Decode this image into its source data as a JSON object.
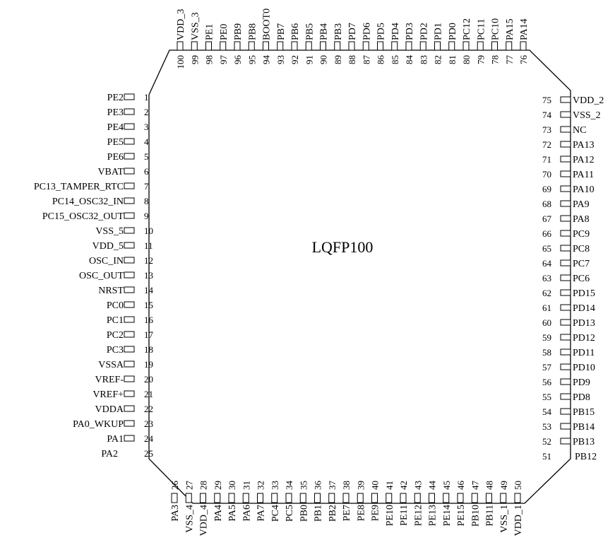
{
  "package_label": "LQFP100",
  "left_pins": [
    {
      "num": "1",
      "name": "PE2"
    },
    {
      "num": "2",
      "name": "PE3"
    },
    {
      "num": "3",
      "name": "PE4"
    },
    {
      "num": "4",
      "name": "PE5"
    },
    {
      "num": "5",
      "name": "PE6"
    },
    {
      "num": "6",
      "name": "VBAT"
    },
    {
      "num": "7",
      "name": "PC13_TAMPER_RTC"
    },
    {
      "num": "8",
      "name": "PC14_OSC32_IN"
    },
    {
      "num": "9",
      "name": "PC15_OSC32_OUT"
    },
    {
      "num": "10",
      "name": "VSS_5"
    },
    {
      "num": "11",
      "name": "VDD_5"
    },
    {
      "num": "12",
      "name": "OSC_IN"
    },
    {
      "num": "13",
      "name": "OSC_OUT"
    },
    {
      "num": "14",
      "name": "NRST"
    },
    {
      "num": "15",
      "name": "PC0"
    },
    {
      "num": "16",
      "name": "PC1"
    },
    {
      "num": "17",
      "name": "PC2"
    },
    {
      "num": "18",
      "name": "PC3"
    },
    {
      "num": "19",
      "name": "VSSA"
    },
    {
      "num": "20",
      "name": "VREF-"
    },
    {
      "num": "21",
      "name": "VREF+"
    },
    {
      "num": "22",
      "name": "VDDA"
    },
    {
      "num": "23",
      "name": "PA0_WKUP"
    },
    {
      "num": "24",
      "name": "PA1"
    },
    {
      "num": "25",
      "name": "PA2"
    }
  ],
  "bottom_pins": [
    {
      "num": "26",
      "name": "PA3"
    },
    {
      "num": "27",
      "name": "VSS_4"
    },
    {
      "num": "28",
      "name": "VDD_4"
    },
    {
      "num": "29",
      "name": "PA4"
    },
    {
      "num": "30",
      "name": "PA5"
    },
    {
      "num": "31",
      "name": "PA6"
    },
    {
      "num": "32",
      "name": "PA7"
    },
    {
      "num": "33",
      "name": "PC4"
    },
    {
      "num": "34",
      "name": "PC5"
    },
    {
      "num": "35",
      "name": "PB0"
    },
    {
      "num": "36",
      "name": "PB1"
    },
    {
      "num": "37",
      "name": "PB2"
    },
    {
      "num": "38",
      "name": "PE7"
    },
    {
      "num": "39",
      "name": "PE8"
    },
    {
      "num": "40",
      "name": "PE9"
    },
    {
      "num": "41",
      "name": "PE10"
    },
    {
      "num": "42",
      "name": "PE11"
    },
    {
      "num": "43",
      "name": "PE12"
    },
    {
      "num": "44",
      "name": "PE13"
    },
    {
      "num": "45",
      "name": "PE14"
    },
    {
      "num": "46",
      "name": "PE15"
    },
    {
      "num": "47",
      "name": "PB10"
    },
    {
      "num": "48",
      "name": "PB11"
    },
    {
      "num": "49",
      "name": "VSS_1"
    },
    {
      "num": "50",
      "name": "VDD_1"
    }
  ],
  "right_pins": [
    {
      "num": "51",
      "name": "PB12"
    },
    {
      "num": "52",
      "name": "PB13"
    },
    {
      "num": "53",
      "name": "PB14"
    },
    {
      "num": "54",
      "name": "PB15"
    },
    {
      "num": "55",
      "name": "PD8"
    },
    {
      "num": "56",
      "name": "PD9"
    },
    {
      "num": "57",
      "name": "PD10"
    },
    {
      "num": "58",
      "name": "PD11"
    },
    {
      "num": "59",
      "name": "PD12"
    },
    {
      "num": "60",
      "name": "PD13"
    },
    {
      "num": "61",
      "name": "PD14"
    },
    {
      "num": "62",
      "name": "PD15"
    },
    {
      "num": "63",
      "name": "PC6"
    },
    {
      "num": "64",
      "name": "PC7"
    },
    {
      "num": "65",
      "name": "PC8"
    },
    {
      "num": "66",
      "name": "PC9"
    },
    {
      "num": "67",
      "name": "PA8"
    },
    {
      "num": "68",
      "name": "PA9"
    },
    {
      "num": "69",
      "name": "PA10"
    },
    {
      "num": "70",
      "name": "PA11"
    },
    {
      "num": "71",
      "name": "PA12"
    },
    {
      "num": "72",
      "name": "PA13"
    },
    {
      "num": "73",
      "name": "NC"
    },
    {
      "num": "74",
      "name": "VSS_2"
    },
    {
      "num": "75",
      "name": "VDD_2"
    }
  ],
  "top_pins": [
    {
      "num": "76",
      "name": "PA14"
    },
    {
      "num": "77",
      "name": "PA15"
    },
    {
      "num": "78",
      "name": "PC10"
    },
    {
      "num": "79",
      "name": "PC11"
    },
    {
      "num": "80",
      "name": "PC12"
    },
    {
      "num": "81",
      "name": "PD0"
    },
    {
      "num": "82",
      "name": "PD1"
    },
    {
      "num": "83",
      "name": "PD2"
    },
    {
      "num": "84",
      "name": "PD3"
    },
    {
      "num": "85",
      "name": "PD4"
    },
    {
      "num": "86",
      "name": "PD5"
    },
    {
      "num": "87",
      "name": "PD6"
    },
    {
      "num": "88",
      "name": "PD7"
    },
    {
      "num": "89",
      "name": "PB3"
    },
    {
      "num": "90",
      "name": "PB4"
    },
    {
      "num": "91",
      "name": "PB5"
    },
    {
      "num": "92",
      "name": "PB6"
    },
    {
      "num": "93",
      "name": "PB7"
    },
    {
      "num": "94",
      "name": "BOOT0"
    },
    {
      "num": "95",
      "name": "PB8"
    },
    {
      "num": "96",
      "name": "PB9"
    },
    {
      "num": "97",
      "name": "PE0"
    },
    {
      "num": "98",
      "name": "PE1"
    },
    {
      "num": "99",
      "name": "VSS_3"
    },
    {
      "num": "100",
      "name": "VDD_3"
    }
  ]
}
